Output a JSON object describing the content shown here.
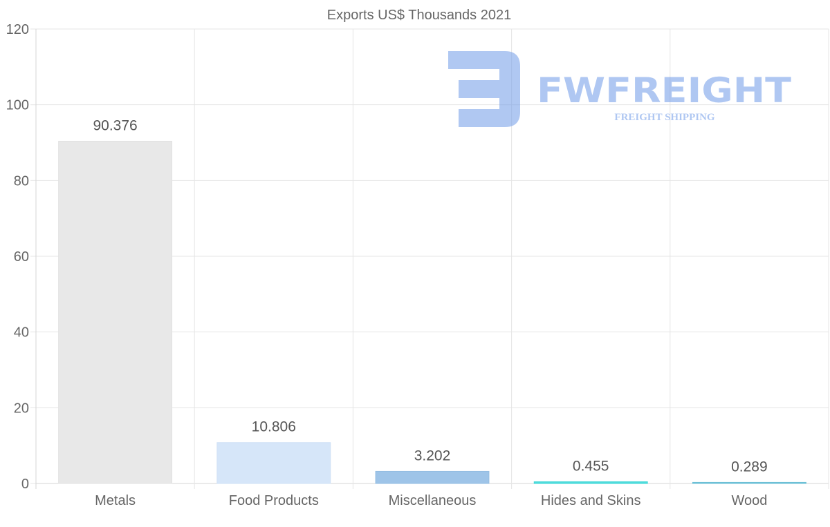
{
  "chart_data": {
    "type": "bar",
    "title": "Exports US$ Thousands 2021",
    "categories": [
      "Metals",
      "Food Products",
      "Miscellaneous",
      "Hides and Skins",
      "Wood"
    ],
    "values": [
      90.376,
      10.806,
      3.202,
      0.455,
      0.289
    ],
    "value_labels": [
      "90.376",
      "10.806",
      "3.202",
      "0.455",
      "0.289"
    ],
    "bar_colors": [
      "#e8e8e8",
      "#d6e6f9",
      "#9ec4e8",
      "#4fdcdc",
      "#7ec8dc"
    ],
    "bar_border_colors": [
      "#e2e2e2",
      "#cfe0f5",
      "#94bde2",
      "#3dd6d6",
      "#6bbfd6"
    ],
    "xlabel": "",
    "ylabel": "",
    "ylim": [
      0,
      120
    ],
    "yticks": [
      0,
      20,
      40,
      60,
      80,
      100,
      120
    ],
    "grid": true,
    "legend": "none"
  },
  "watermark": {
    "brand": "FWFREIGHT",
    "tagline": "FREIGHT SHIPPING",
    "color": "#6f9ae8"
  }
}
